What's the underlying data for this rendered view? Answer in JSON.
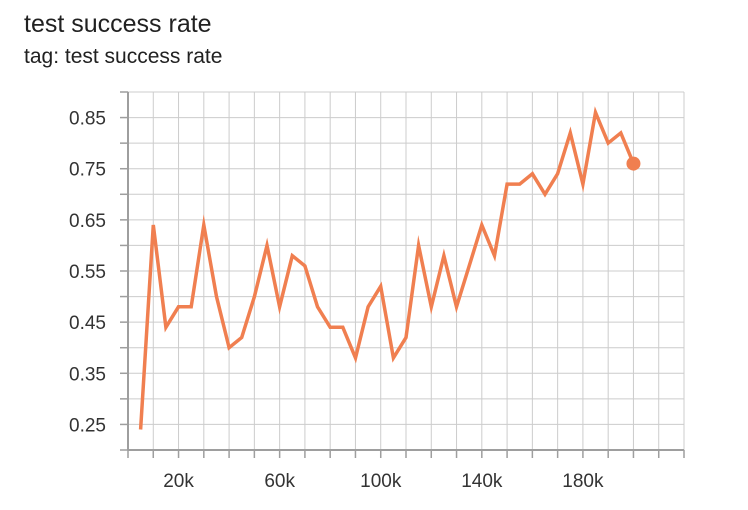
{
  "header": {
    "title": "test success rate",
    "subtitle": "tag: test success rate"
  },
  "colors": {
    "series": "#F07F50",
    "grid": "#cccccc",
    "axis": "#9e9e9e",
    "text": "#333333"
  },
  "chart_data": {
    "type": "line",
    "title": "test success rate",
    "subtitle": "tag: test success rate",
    "xlabel": "",
    "ylabel": "",
    "xlim": [
      0,
      220000
    ],
    "ylim": [
      0.2,
      0.9
    ],
    "x_ticks": [
      20000,
      60000,
      100000,
      140000,
      180000
    ],
    "x_tick_labels": [
      "20k",
      "60k",
      "100k",
      "140k",
      "180k"
    ],
    "y_ticks": [
      0.25,
      0.35,
      0.45,
      0.55,
      0.65,
      0.75,
      0.85
    ],
    "y_tick_labels": [
      "0.25",
      "0.35",
      "0.45",
      "0.55",
      "0.65",
      "0.75",
      "0.85"
    ],
    "grid": true,
    "series": [
      {
        "x": [
          5000,
          10000,
          15000,
          20000,
          25000,
          30000,
          35000,
          40000,
          45000,
          50000,
          55000,
          60000,
          65000,
          70000,
          75000,
          80000,
          85000,
          90000,
          95000,
          100000,
          105000,
          110000,
          115000,
          120000,
          125000,
          130000,
          135000,
          140000,
          145000,
          150000,
          155000,
          160000,
          165000,
          170000,
          175000,
          180000,
          185000,
          190000,
          195000,
          200000
        ],
        "y": [
          0.24,
          0.64,
          0.44,
          0.48,
          0.48,
          0.64,
          0.5,
          0.4,
          0.42,
          0.5,
          0.6,
          0.48,
          0.58,
          0.56,
          0.48,
          0.44,
          0.44,
          0.38,
          0.48,
          0.52,
          0.38,
          0.42,
          0.6,
          0.48,
          0.58,
          0.48,
          0.56,
          0.64,
          0.58,
          0.72,
          0.72,
          0.74,
          0.7,
          0.74,
          0.82,
          0.72,
          0.86,
          0.8,
          0.82,
          0.76
        ]
      }
    ]
  }
}
